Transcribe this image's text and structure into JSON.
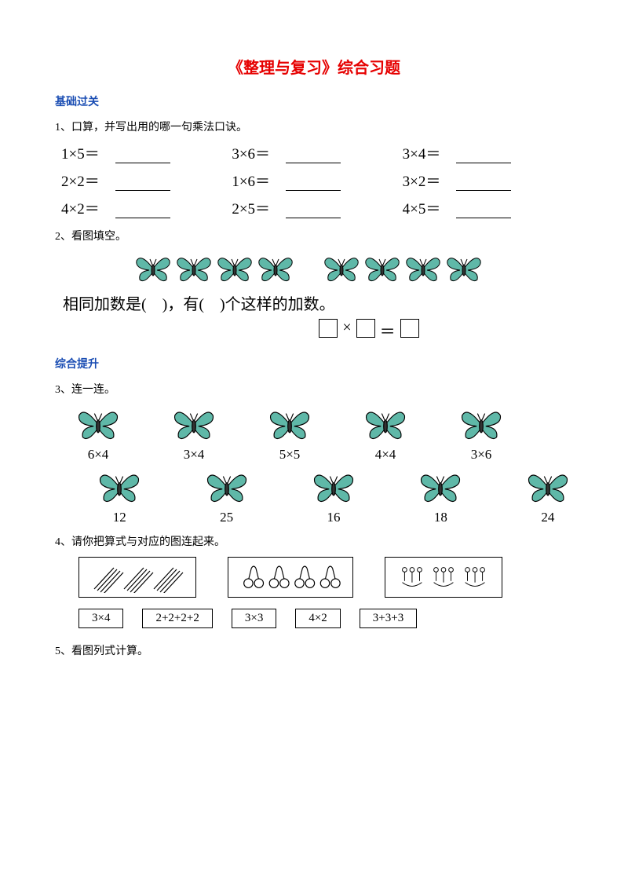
{
  "title": "《整理与复习》综合习题",
  "title_color": "#e60000",
  "sections": {
    "basic": {
      "label": "基础过关",
      "color": "#1a4db3"
    },
    "advanced": {
      "label": "综合提升",
      "color": "#1a4db3"
    }
  },
  "q1": {
    "prompt": "1、口算，并写出用的哪一句乘法口诀。",
    "rows": [
      [
        "1×5＝",
        "3×6＝",
        "3×4＝"
      ],
      [
        "2×2＝",
        "1×6＝",
        "3×2＝"
      ],
      [
        "4×2＝",
        "2×5＝",
        "4×5＝"
      ]
    ],
    "text_color": "#000000",
    "fontsize": 19
  },
  "q2": {
    "prompt": "2、看图填空。",
    "groups": [
      4,
      4
    ],
    "fill_text_pre": "相同加数是(",
    "fill_text_mid": ")，有(",
    "fill_text_post": ")个这样的加数。",
    "box_sep1": "×",
    "box_sep2": "＝",
    "butterfly_color": "#5fb8a8"
  },
  "q3": {
    "prompt": "3、连一连。",
    "top": [
      "6×4",
      "3×4",
      "5×5",
      "4×4",
      "3×6"
    ],
    "bottom": [
      "12",
      "25",
      "16",
      "18",
      "24"
    ],
    "butterfly_color": "#5fb8a8",
    "fontsize": 17
  },
  "q4": {
    "prompt": "4、请你把算式与对应的图连起来。",
    "images": [
      {
        "type": "pencils",
        "groups": 3,
        "per": 4
      },
      {
        "type": "cherries",
        "count": 4,
        "per": 2
      },
      {
        "type": "flowers",
        "groups": 3,
        "per": 3
      }
    ],
    "equations": [
      "3×4",
      "2+2+2+2",
      "3×3",
      "4×2",
      "3+3+3"
    ]
  },
  "q5": {
    "prompt": "5、看图列式计算。"
  }
}
